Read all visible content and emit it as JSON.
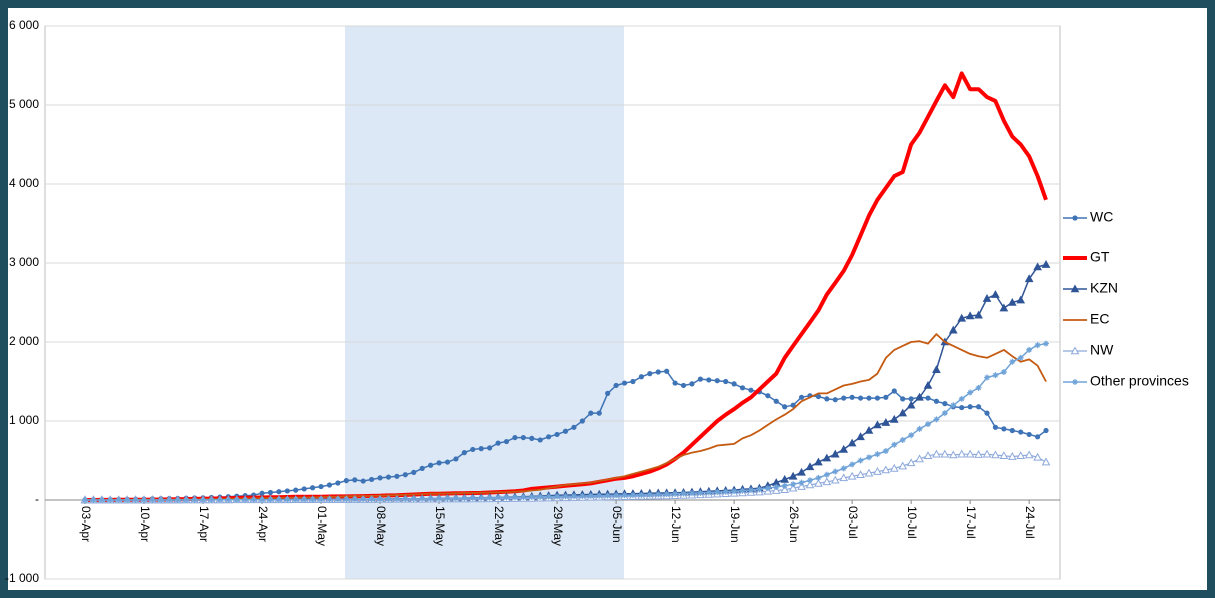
{
  "chart_data": {
    "type": "line",
    "categories": [
      "03-Apr",
      null,
      null,
      null,
      null,
      null,
      null,
      "10-Apr",
      null,
      null,
      null,
      null,
      null,
      null,
      "17-Apr",
      null,
      null,
      null,
      null,
      null,
      null,
      "24-Apr",
      null,
      null,
      null,
      null,
      null,
      null,
      "01-May",
      null,
      null,
      null,
      null,
      null,
      null,
      "08-May",
      null,
      null,
      null,
      null,
      null,
      null,
      "15-May",
      null,
      null,
      null,
      null,
      null,
      null,
      "22-May",
      null,
      null,
      null,
      null,
      null,
      null,
      "29-May",
      null,
      null,
      null,
      null,
      null,
      null,
      "05-Jun",
      null,
      null,
      null,
      null,
      null,
      null,
      "12-Jun",
      null,
      null,
      null,
      null,
      null,
      null,
      "19-Jun",
      null,
      null,
      null,
      null,
      null,
      null,
      "26-Jun",
      null,
      null,
      null,
      null,
      null,
      null,
      "03-Jul",
      null,
      null,
      null,
      null,
      null,
      null,
      "10-Jul",
      null,
      null,
      null,
      null,
      null,
      null,
      "17-Jul",
      null,
      null,
      null,
      null,
      null,
      null,
      "24-Jul",
      null,
      null
    ],
    "series": [
      {
        "name": "WC",
        "color": "#3e73b6",
        "marker": "circle",
        "width": 1.5,
        "values": [
          2,
          3,
          4,
          5,
          6,
          8,
          10,
          12,
          14,
          16,
          18,
          20,
          22,
          25,
          28,
          32,
          36,
          42,
          48,
          55,
          62,
          85,
          95,
          105,
          115,
          125,
          140,
          155,
          170,
          190,
          215,
          245,
          255,
          240,
          260,
          280,
          290,
          300,
          320,
          350,
          400,
          440,
          470,
          480,
          520,
          600,
          640,
          650,
          660,
          720,
          740,
          790,
          790,
          780,
          760,
          800,
          830,
          870,
          920,
          1000,
          1100,
          1100,
          1350,
          1450,
          1480,
          1500,
          1560,
          1600,
          1620,
          1630,
          1480,
          1450,
          1470,
          1530,
          1520,
          1510,
          1500,
          1470,
          1420,
          1390,
          1370,
          1320,
          1250,
          1180,
          1200,
          1300,
          1320,
          1310,
          1280,
          1270,
          1290,
          1300,
          1290,
          1290,
          1290,
          1300,
          1380,
          1280,
          1280,
          1300,
          1290,
          1250,
          1220,
          1180,
          1170,
          1180,
          1180,
          1100,
          920,
          900,
          880,
          860,
          830,
          800,
          880
        ]
      },
      {
        "name": "GT",
        "color": "#ff0000",
        "marker": "none",
        "width": 4,
        "values": [
          0,
          0,
          1,
          1,
          2,
          2,
          3,
          4,
          5,
          6,
          8,
          10,
          12,
          14,
          16,
          18,
          20,
          22,
          25,
          28,
          30,
          32,
          34,
          36,
          38,
          40,
          40,
          42,
          42,
          44,
          45,
          46,
          48,
          50,
          52,
          55,
          58,
          60,
          65,
          70,
          75,
          78,
          80,
          82,
          85,
          85,
          88,
          90,
          95,
          100,
          105,
          110,
          120,
          140,
          150,
          160,
          170,
          180,
          190,
          200,
          210,
          230,
          250,
          270,
          280,
          300,
          330,
          360,
          400,
          450,
          520,
          600,
          700,
          800,
          900,
          1000,
          1080,
          1150,
          1230,
          1300,
          1400,
          1500,
          1600,
          1800,
          1950,
          2100,
          2250,
          2400,
          2600,
          2750,
          2900,
          3100,
          3350,
          3600,
          3800,
          3950,
          4100,
          4150,
          4500,
          4650,
          4850,
          5050,
          5250,
          5100,
          5400,
          5200,
          5200,
          5100,
          5050,
          4800,
          4600,
          4500,
          4350,
          4100,
          3800
        ]
      },
      {
        "name": "KZN",
        "color": "#2f5597",
        "marker": "triangle",
        "width": 1.5,
        "values": [
          0,
          0,
          0,
          0,
          0,
          0,
          0,
          0,
          1,
          1,
          1,
          1,
          2,
          2,
          2,
          3,
          3,
          3,
          4,
          4,
          4,
          5,
          5,
          5,
          6,
          6,
          7,
          7,
          8,
          8,
          9,
          9,
          10,
          10,
          11,
          12,
          13,
          14,
          15,
          16,
          17,
          18,
          19,
          20,
          22,
          24,
          26,
          28,
          30,
          32,
          35,
          38,
          40,
          45,
          50,
          55,
          60,
          62,
          65,
          68,
          70,
          72,
          74,
          76,
          78,
          80,
          82,
          85,
          88,
          90,
          92,
          95,
          100,
          105,
          110,
          115,
          120,
          125,
          135,
          140,
          150,
          180,
          220,
          260,
          300,
          350,
          420,
          480,
          530,
          580,
          640,
          720,
          800,
          880,
          950,
          980,
          1020,
          1100,
          1200,
          1300,
          1450,
          1650,
          2000,
          2150,
          2300,
          2330,
          2340,
          2550,
          2600,
          2430,
          2500,
          2530,
          2800,
          2950,
          2980
        ]
      },
      {
        "name": "EC",
        "color": "#c55a11",
        "marker": "none",
        "width": 1.8,
        "values": [
          0,
          0,
          0,
          1,
          1,
          1,
          2,
          2,
          3,
          3,
          4,
          5,
          6,
          7,
          8,
          10,
          12,
          14,
          16,
          18,
          20,
          22,
          24,
          26,
          28,
          30,
          32,
          34,
          36,
          40,
          42,
          45,
          48,
          50,
          52,
          55,
          58,
          62,
          66,
          70,
          75,
          80,
          80,
          82,
          85,
          88,
          90,
          92,
          95,
          98,
          100,
          105,
          110,
          120,
          130,
          150,
          170,
          190,
          200,
          210,
          220,
          240,
          260,
          280,
          300,
          330,
          360,
          390,
          420,
          470,
          520,
          570,
          600,
          620,
          650,
          690,
          700,
          710,
          780,
          820,
          880,
          950,
          1020,
          1080,
          1150,
          1250,
          1300,
          1350,
          1350,
          1400,
          1450,
          1470,
          1500,
          1520,
          1600,
          1800,
          1900,
          1950,
          2000,
          2010,
          1980,
          2100,
          2000,
          1950,
          1900,
          1850,
          1820,
          1800,
          1850,
          1900,
          1820,
          1750,
          1780,
          1700,
          1500
        ]
      },
      {
        "name": "NW",
        "color": "#8ea9db",
        "marker": "hollow-triangle",
        "width": 1.2,
        "values": [
          0,
          0,
          0,
          0,
          0,
          0,
          0,
          0,
          0,
          0,
          0,
          0,
          0,
          1,
          1,
          1,
          1,
          2,
          2,
          2,
          2,
          3,
          3,
          3,
          3,
          4,
          4,
          4,
          5,
          5,
          5,
          5,
          6,
          6,
          6,
          7,
          7,
          8,
          8,
          9,
          9,
          10,
          10,
          11,
          12,
          12,
          13,
          14,
          15,
          16,
          17,
          18,
          19,
          20,
          22,
          24,
          26,
          28,
          30,
          32,
          34,
          36,
          38,
          40,
          42,
          44,
          46,
          48,
          50,
          52,
          55,
          58,
          60,
          65,
          70,
          75,
          80,
          85,
          90,
          95,
          100,
          110,
          120,
          130,
          150,
          170,
          190,
          210,
          230,
          250,
          280,
          300,
          320,
          340,
          360,
          380,
          400,
          430,
          470,
          520,
          560,
          580,
          580,
          570,
          580,
          580,
          575,
          580,
          570,
          560,
          550,
          560,
          570,
          540,
          480
        ]
      },
      {
        "name": "Other provinces",
        "color": "#6fa3d8",
        "marker": "star",
        "width": 1.5,
        "values": [
          0,
          0,
          0,
          0,
          0,
          0,
          0,
          0,
          0,
          0,
          0,
          0,
          1,
          1,
          1,
          1,
          2,
          2,
          2,
          3,
          3,
          3,
          4,
          4,
          5,
          5,
          6,
          6,
          7,
          7,
          8,
          8,
          9,
          10,
          10,
          11,
          12,
          13,
          14,
          15,
          16,
          17,
          18,
          19,
          20,
          22,
          24,
          26,
          28,
          30,
          32,
          34,
          36,
          38,
          40,
          42,
          44,
          46,
          48,
          50,
          52,
          54,
          56,
          58,
          60,
          62,
          64,
          66,
          70,
          74,
          78,
          82,
          86,
          90,
          95,
          100,
          105,
          110,
          118,
          125,
          135,
          150,
          165,
          180,
          200,
          220,
          250,
          280,
          320,
          360,
          400,
          450,
          500,
          540,
          580,
          620,
          700,
          760,
          820,
          900,
          960,
          1020,
          1100,
          1200,
          1280,
          1360,
          1420,
          1550,
          1580,
          1620,
          1750,
          1800,
          1900,
          1960,
          1980
        ]
      }
    ],
    "ylim": [
      -1000,
      6000
    ],
    "yticks": [
      {
        "value": -1000,
        "label": "-1 000"
      },
      {
        "value": 0,
        "label": "-"
      },
      {
        "value": 1000,
        "label": "1 000"
      },
      {
        "value": 2000,
        "label": "2 000"
      },
      {
        "value": 3000,
        "label": "3 000"
      },
      {
        "value": 4000,
        "label": "4 000"
      },
      {
        "value": 5000,
        "label": "5 000"
      },
      {
        "value": 6000,
        "label": "6 000"
      }
    ],
    "grid": true,
    "legend": "right"
  }
}
